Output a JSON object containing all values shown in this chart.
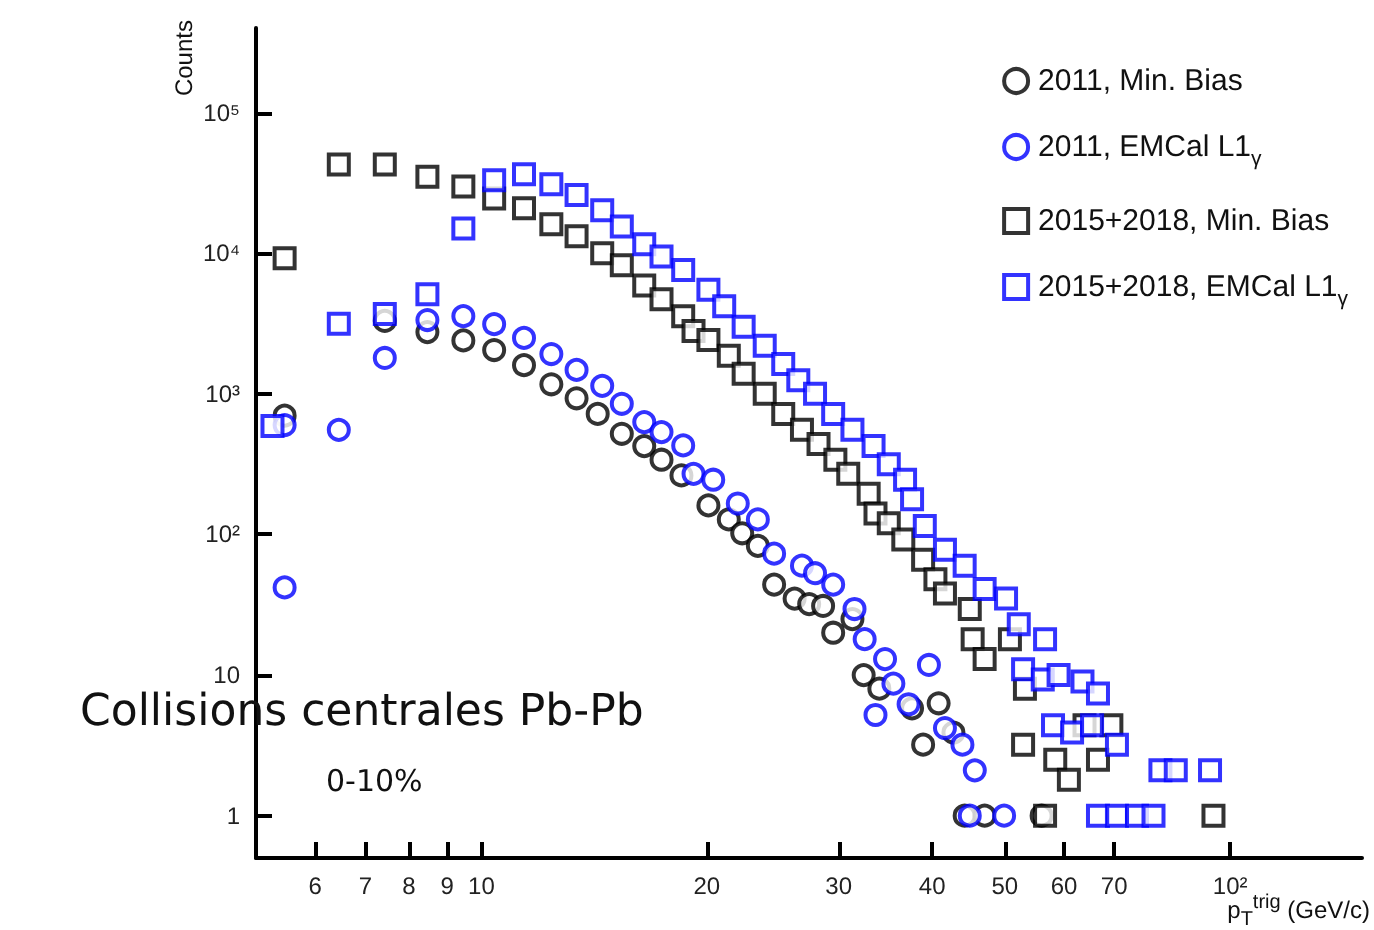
{
  "chart_data": {
    "type": "scatter",
    "xlabel": "p$_{T}$$^{trig}$ (GeV/c)",
    "ylabel": "Counts",
    "log": "xy",
    "xlim": [
      5,
      150
    ],
    "xticks": [
      6,
      7,
      8,
      9,
      10,
      20,
      30,
      40,
      50,
      60,
      70,
      {
        "value": 100,
        "label": "10²"
      }
    ],
    "ylim": [
      0.5,
      400000
    ],
    "yticks": [
      1,
      10,
      {
        "value": 100,
        "label": "10²"
      },
      {
        "value": 1000,
        "label": "10³"
      },
      {
        "value": 10000,
        "label": "10⁴"
      },
      {
        "value": 100000,
        "label": "10⁵"
      }
    ],
    "grid": false,
    "legend": "top right",
    "annotations": [
      "Collisions centrales Pb-Pb",
      "0-10%"
    ],
    "series": [
      {
        "name": "2011, Min. Bias",
        "color": "#000000",
        "marker": "circle",
        "x": [
          5.46,
          6.45,
          7.43,
          8.47,
          9.46,
          10.4,
          11.4,
          12.4,
          13.4,
          14.3,
          15.4,
          16.5,
          17.4,
          18.5,
          20.1,
          21.4,
          22.3,
          23.4,
          24.6,
          26.2,
          27.4,
          28.6,
          29.5,
          31.3,
          32.4,
          34,
          35.6,
          37.6,
          38.9,
          40.8,
          42.7,
          44.2,
          47,
          56
        ],
        "values": [
          700,
          null,
          3300,
          2750,
          2400,
          2050,
          1600,
          1170,
          930,
          720,
          520,
          425,
          340,
          263,
          161,
          128,
          102,
          83,
          44,
          35,
          32,
          31,
          20,
          25,
          10,
          8,
          null,
          5.8,
          3.2,
          6.3,
          3.9,
          1,
          1,
          1
        ]
      },
      {
        "name": "2011, EMCal L1$_{γ}$",
        "color": "#0000ff",
        "marker": "circle",
        "x": [
          5.46,
          6.45,
          5.46,
          7.43,
          8.47,
          9.46,
          10.4,
          11.4,
          12.4,
          13.4,
          14.5,
          15.4,
          16.5,
          17.4,
          18.6,
          19.2,
          20.4,
          22,
          23.4,
          24.6,
          26.8,
          27.9,
          29.5,
          31.5,
          32.5,
          34.6,
          33.6,
          35.5,
          39.6,
          37.2,
          41.6,
          43.9,
          45.6,
          44.9,
          49.9
        ],
        "values": [
          600,
          555,
          42,
          1800,
          3350,
          3570,
          3130,
          2500,
          1920,
          1480,
          1140,
          850,
          630,
          535,
          430,
          270,
          245,
          166,
          128,
          73,
          60,
          53,
          44,
          29.5,
          18,
          13,
          5.2,
          8.7,
          11.8,
          6.2,
          4.2,
          3.2,
          2.1,
          1,
          1
        ]
      },
      {
        "name": "2015+2018, Min. Bias",
        "color": "#000000",
        "marker": "square",
        "x": [
          5.46,
          6.45,
          7.43,
          8.47,
          9.46,
          10.4,
          11.4,
          12.4,
          13.4,
          14.5,
          15.4,
          16.5,
          17.4,
          18.6,
          19.2,
          20.1,
          21.4,
          22.4,
          23.9,
          25.3,
          26.8,
          28.2,
          29.7,
          30.9,
          32.9,
          33.6,
          35,
          36.6,
          38.9,
          40.4,
          41.6,
          44.9,
          45.3,
          47,
          50.8,
          53.2,
          52.9,
          56.6,
          58.4,
          60.9,
          63.9,
          66.6,
          69.4,
          76.5,
          95
        ],
        "values": [
          9200,
          42700,
          42700,
          35000,
          29800,
          24500,
          20900,
          16100,
          13200,
          10000,
          8200,
          5900,
          4700,
          3570,
          2800,
          2420,
          1870,
          1390,
          1000,
          720,
          555,
          440,
          340,
          270,
          195,
          141,
          120,
          92,
          66,
          48,
          38,
          29.5,
          18,
          13,
          18,
          8,
          3.2,
          1,
          2.5,
          1.8,
          4.4,
          2.5,
          4.4,
          null,
          1
        ]
      },
      {
        "name": "2015+2018, EMCal L1$_{γ}$",
        "color": "#0000ff",
        "marker": "square",
        "x": [
          5.26,
          6.45,
          7.43,
          8.47,
          9.46,
          10.4,
          11.4,
          12.4,
          13.4,
          14.5,
          15.4,
          16.5,
          17.4,
          18.6,
          20.1,
          21.1,
          22.4,
          23.9,
          25.3,
          26.5,
          27.9,
          29.5,
          31.3,
          33.4,
          35,
          36.8,
          37.6,
          39.1,
          41.6,
          44.2,
          47,
          50.2,
          52.2,
          54.8,
          56.6,
          52.9,
          56.2,
          59,
          63.5,
          66.6,
          58,
          61.5,
          65.4,
          70.6,
          66.6,
          70.6,
          75.1,
          79,
          80.7,
          84.6,
          94
        ],
        "values": [
          590,
          3150,
          3700,
          5100,
          15000,
          33000,
          36500,
          31000,
          26000,
          20200,
          15500,
          11600,
          9500,
          7600,
          5500,
          4200,
          3000,
          2200,
          1630,
          1250,
          1000,
          720,
          555,
          425,
          316,
          245,
          178,
          115,
          78,
          60,
          41,
          35,
          23,
          null,
          18,
          11,
          9.3,
          10,
          9,
          7.4,
          4.4,
          3.9,
          4.4,
          3.2,
          1,
          1,
          1,
          1,
          2.1,
          2.1,
          2.1
        ]
      }
    ]
  }
}
